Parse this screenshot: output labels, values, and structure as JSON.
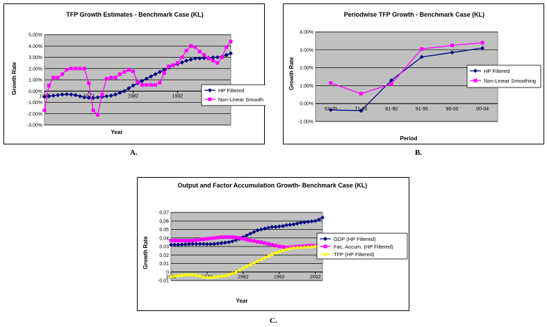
{
  "captions": {
    "a": "A.",
    "b": "B.",
    "c": "C."
  },
  "chart_data": [
    {
      "type": "line",
      "title": "TFP Growth Estimates - Benchmark Case (KL)",
      "xlabel": "Year",
      "ylabel": "Growth Rate",
      "yticks": [
        "5.00%",
        "4.00%",
        "3.00%",
        "2.00%",
        "1.00%",
        "0.00%",
        "-1.00%",
        "-2.00%",
        "-3.00%"
      ],
      "ylim": [
        -0.03,
        0.05
      ],
      "xticks": [
        "1962",
        "1972",
        "1982",
        "1992",
        "2002"
      ],
      "grid": true,
      "legend_position": "right",
      "x": [
        1962,
        1963,
        1964,
        1965,
        1966,
        1967,
        1968,
        1969,
        1970,
        1971,
        1972,
        1973,
        1974,
        1975,
        1976,
        1977,
        1978,
        1979,
        1980,
        1981,
        1982,
        1983,
        1984,
        1985,
        1986,
        1987,
        1988,
        1989,
        1990,
        1991,
        1992,
        1993,
        1994,
        1995,
        1996,
        1997,
        1998,
        1999,
        2000,
        2001,
        2002,
        2003,
        2004
      ],
      "series": [
        {
          "name": "HP Filtered",
          "color": "#000080",
          "marker": "diamond",
          "values": [
            -0.005,
            -0.0045,
            -0.004,
            -0.0035,
            -0.003,
            -0.0028,
            -0.003,
            -0.0035,
            -0.0045,
            -0.0055,
            -0.006,
            -0.006,
            -0.0055,
            -0.005,
            -0.0045,
            -0.004,
            -0.003,
            -0.0015,
            0.0,
            0.0025,
            0.005,
            0.007,
            0.009,
            0.011,
            0.013,
            0.015,
            0.017,
            0.019,
            0.021,
            0.023,
            0.024,
            0.0255,
            0.027,
            0.028,
            0.029,
            0.029,
            0.0292,
            0.0295,
            0.0298,
            0.03,
            0.0305,
            0.032,
            0.0335
          ]
        },
        {
          "name": "Non-Linear Smooth",
          "color": "#ff00ff",
          "marker": "square",
          "values": [
            -0.017,
            0.005,
            0.012,
            0.012,
            0.015,
            0.019,
            0.02,
            0.02,
            0.02,
            0.02,
            0.007,
            -0.017,
            -0.021,
            -0.003,
            0.011,
            0.012,
            0.012,
            0.015,
            0.017,
            0.019,
            0.0175,
            0.008,
            0.0055,
            0.0055,
            0.0055,
            0.0055,
            0.0075,
            0.016,
            0.022,
            0.023,
            0.025,
            0.03,
            0.036,
            0.04,
            0.039,
            0.035,
            0.032,
            0.029,
            0.027,
            0.025,
            0.03,
            0.039,
            0.044
          ]
        }
      ]
    },
    {
      "type": "line",
      "title": "Periodwise TFP Growth - Benchmark Case (KL)",
      "xlabel": "Period",
      "ylabel": "Growth Rate",
      "categories": [
        "62-70",
        "71-80",
        "81-90",
        "91-95",
        "96-00",
        "00-04"
      ],
      "yticks": [
        "4.00%",
        "3.00%",
        "2.00%",
        "1.00%",
        "0.00%",
        "-1.00%"
      ],
      "ylim": [
        -0.01,
        0.04
      ],
      "grid": true,
      "legend_position": "right",
      "series": [
        {
          "name": "HP Filtered",
          "color": "#000080",
          "marker": "diamond",
          "values": [
            -0.0035,
            -0.004,
            0.013,
            0.026,
            0.0285,
            0.031
          ]
        },
        {
          "name": "Non-Linear Smoothing",
          "color": "#ff00ff",
          "marker": "square",
          "values": [
            0.0115,
            0.0055,
            0.011,
            0.0305,
            0.0325,
            0.034
          ]
        }
      ]
    },
    {
      "type": "line",
      "title": "Output and Factor Accumulation Growth- Benchmark Case (KL)",
      "xlabel": "Year",
      "ylabel": "Growth Rate",
      "yticks": [
        "0.07",
        "0.06",
        "0.05",
        "0.04",
        "0.03",
        "0.02",
        "0.01",
        "0",
        "-0.01"
      ],
      "ylim": [
        -0.01,
        0.07
      ],
      "xticks": [
        "1962",
        "1972",
        "1982",
        "1992",
        "2002"
      ],
      "grid": true,
      "legend_position": "right",
      "x": [
        1962,
        1963,
        1964,
        1965,
        1966,
        1967,
        1968,
        1969,
        1970,
        1971,
        1972,
        1973,
        1974,
        1975,
        1976,
        1977,
        1978,
        1979,
        1980,
        1981,
        1982,
        1983,
        1984,
        1985,
        1986,
        1987,
        1988,
        1989,
        1990,
        1991,
        1992,
        1993,
        1994,
        1995,
        1996,
        1997,
        1998,
        1999,
        2000,
        2001,
        2002,
        2003,
        2004
      ],
      "series": [
        {
          "name": "GDP (HP Filtered)",
          "color": "#000080",
          "marker": "diamond",
          "values": [
            0.032,
            0.032,
            0.032,
            0.0322,
            0.0325,
            0.0328,
            0.033,
            0.033,
            0.033,
            0.033,
            0.0328,
            0.0328,
            0.033,
            0.0335,
            0.034,
            0.0345,
            0.035,
            0.036,
            0.0375,
            0.039,
            0.041,
            0.043,
            0.045,
            0.047,
            0.049,
            0.05,
            0.051,
            0.052,
            0.053,
            0.053,
            0.0535,
            0.054,
            0.055,
            0.0555,
            0.056,
            0.057,
            0.058,
            0.0585,
            0.059,
            0.0595,
            0.06,
            0.0615,
            0.064
          ]
        },
        {
          "name": "Fac. Accum. (HP Filtered)",
          "color": "#ff00ff",
          "marker": "square",
          "values": [
            0.037,
            0.037,
            0.037,
            0.037,
            0.0368,
            0.0368,
            0.037,
            0.0375,
            0.038,
            0.0385,
            0.039,
            0.0395,
            0.04,
            0.0405,
            0.041,
            0.041,
            0.041,
            0.041,
            0.0405,
            0.04,
            0.039,
            0.038,
            0.037,
            0.0365,
            0.0355,
            0.035,
            0.034,
            0.033,
            0.032,
            0.031,
            0.03,
            0.0295,
            0.029,
            0.029,
            0.0295,
            0.03,
            0.0302,
            0.0305,
            0.031,
            0.031,
            0.031,
            0.0312,
            0.0315
          ]
        },
        {
          "name": "TFP (HP Filtered)",
          "color": "#ffff00",
          "marker": "triangle",
          "values": [
            -0.005,
            -0.0045,
            -0.004,
            -0.0035,
            -0.003,
            -0.0028,
            -0.003,
            -0.0035,
            -0.0045,
            -0.0055,
            -0.006,
            -0.006,
            -0.0055,
            -0.005,
            -0.0045,
            -0.004,
            -0.003,
            -0.0015,
            0.0,
            0.0025,
            0.005,
            0.007,
            0.009,
            0.011,
            0.013,
            0.015,
            0.017,
            0.019,
            0.021,
            0.023,
            0.024,
            0.0255,
            0.027,
            0.028,
            0.029,
            0.029,
            0.0292,
            0.0295,
            0.0298,
            0.03,
            0.0305,
            0.032,
            0.0335
          ]
        }
      ]
    }
  ]
}
